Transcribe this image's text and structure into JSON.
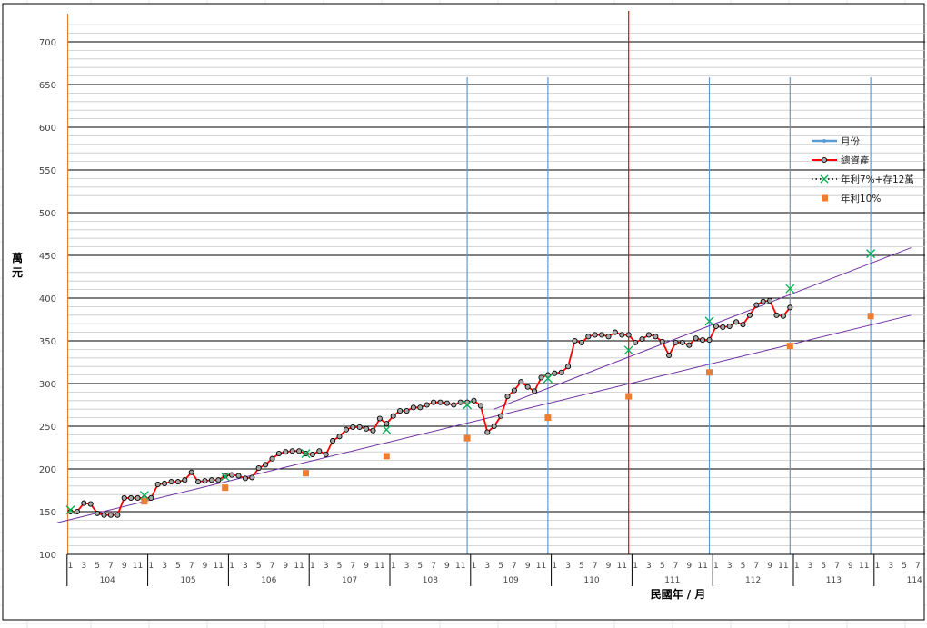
{
  "chart_data": {
    "type": "line",
    "ylabel": "萬元",
    "xlabel": "民國年 / 月",
    "ylim": [
      100,
      700
    ],
    "yticks": [
      100,
      150,
      200,
      250,
      300,
      350,
      400,
      450,
      500,
      550,
      600,
      650,
      700
    ],
    "grid": true,
    "legend_position": "right",
    "legend": [
      {
        "name": "月份",
        "color": "#5b9bd5",
        "marker": "line-dot"
      },
      {
        "name": "總資產",
        "color": "#ff0000",
        "marker": "circle"
      },
      {
        "name": "年利7%+存12萬",
        "color": "#00b050",
        "marker": "x"
      },
      {
        "name": "年利10%",
        "color": "#ed7d31",
        "marker": "square"
      }
    ],
    "x_axis": {
      "years": [
        "104",
        "105",
        "106",
        "107",
        "108",
        "109",
        "110",
        "111",
        "112",
        "113",
        "114"
      ],
      "month_ticks": [
        "1",
        "3",
        "5",
        "7",
        "9",
        "11"
      ],
      "start": "104/1",
      "months_shown": 130
    },
    "series": [
      {
        "name": "總資產",
        "color": "#ff0000",
        "start": "104/1",
        "values": [
          150,
          150,
          160,
          159,
          148,
          146,
          146,
          146,
          166,
          166,
          166,
          166,
          166,
          182,
          183,
          185,
          185,
          187,
          196,
          185,
          186,
          187,
          187,
          192,
          193,
          192,
          189,
          190,
          201,
          205,
          212,
          218,
          220,
          221,
          221,
          218,
          217,
          221,
          217,
          233,
          238,
          246,
          249,
          249,
          247,
          245,
          259,
          253,
          262,
          268,
          268,
          272,
          272,
          275,
          278,
          278,
          277,
          275,
          278,
          278,
          280,
          274,
          243,
          250,
          262,
          285,
          292,
          302,
          296,
          291,
          307,
          310,
          312,
          313,
          320,
          350,
          348,
          355,
          357,
          357,
          355,
          360,
          357,
          357,
          348,
          352,
          357,
          355,
          349,
          333,
          348,
          348,
          345,
          353,
          351,
          351,
          367,
          366,
          367,
          372,
          369,
          380,
          392,
          396,
          397,
          380,
          379,
          389
        ]
      },
      {
        "name": "年利7%+存12萬",
        "color": "#00b050",
        "points": [
          [
            "104/1",
            152
          ],
          [
            "104/12",
            169
          ],
          [
            "105/12",
            191
          ],
          [
            "106/12",
            218
          ],
          [
            "107/12",
            246
          ],
          [
            "108/12",
            275
          ],
          [
            "109/12",
            306
          ],
          [
            "110/12",
            339
          ],
          [
            "111/12",
            373
          ],
          [
            "112/12",
            411
          ],
          [
            "113/12",
            452
          ]
        ]
      },
      {
        "name": "年利10%",
        "color": "#ed7d31",
        "points": [
          [
            "104/12",
            162
          ],
          [
            "105/12",
            178
          ],
          [
            "106/12",
            195
          ],
          [
            "107/12",
            215
          ],
          [
            "108/12",
            236
          ],
          [
            "109/12",
            260
          ],
          [
            "110/12",
            285
          ],
          [
            "111/12",
            313
          ],
          [
            "112/12",
            344
          ],
          [
            "113/12",
            379
          ]
        ]
      }
    ],
    "reference_lines": {
      "vertical_blue_at": [
        "108/12",
        "109/12",
        "111/12",
        "112/12",
        "113/12"
      ],
      "vertical_red_at": "110/12",
      "vertical_orange_at": "104/1",
      "trend_lines": [
        {
          "color": "#7030a0",
          "from": [
            "103/11",
            137
          ],
          "to": [
            "114/6",
            380
          ]
        },
        {
          "color": "#7030a0",
          "from": [
            "109/4",
            270
          ],
          "to": [
            "114/6",
            459
          ]
        }
      ]
    }
  }
}
